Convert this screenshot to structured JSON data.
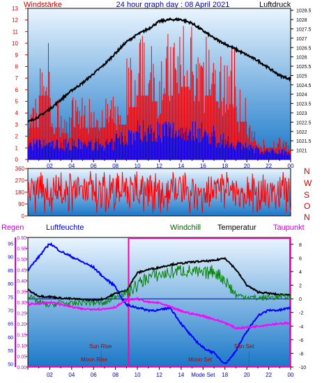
{
  "header": {
    "left_title": "Windstärke",
    "center_title": "24 hour graph day : 08 April 2021",
    "right_title": "Luftdruck"
  },
  "labels": {
    "regen": "Regen",
    "luftfeuchte": "Luftfeuchte",
    "windchill": "Windchill",
    "temperatur": "Temperatur",
    "taupunkt": "Taupunkt",
    "sun_rise": "Sun Rise",
    "moon_rise": "Moon Rise",
    "moon_set": "Moon Set",
    "sun_set": "Sun Set",
    "x_tick_center": "Mode Set",
    "compass": [
      "N",
      "W",
      "S",
      "O",
      "N"
    ]
  },
  "colors": {
    "wind_gust": "#ff0000",
    "wind_avg": "#0000ff",
    "pressure": "#000000",
    "wind_dir": "#ff0000",
    "humidity": "#0000ff",
    "windchill": "#008000",
    "temperature": "#000000",
    "dewpoint": "#ff00ff",
    "rain_box": "#ff00aa",
    "axis_left": "#cc0000",
    "axis_blue": "#0000cc",
    "bg_top": "#eaf5ff",
    "bg_bottom": "#1a78c8"
  },
  "chart_data": [
    {
      "type": "bar",
      "name": "wind",
      "title": "Windstärke",
      "ylabel": "Windstärke",
      "ylim": [
        0,
        13
      ],
      "yticks": [
        0,
        1,
        2,
        3,
        4,
        5,
        6,
        7,
        8,
        9,
        10,
        11,
        12,
        13
      ],
      "y2label": "Luftdruck",
      "y2lim": [
        1030.5,
        1028.6
      ],
      "y2ticks": [
        1028.5,
        1028.0,
        1027.5,
        1027.0,
        1026.5,
        1026.0,
        1025.5,
        1025.0,
        1024.5,
        1024.0,
        1023.5,
        1023.0,
        1022.5,
        1022.0,
        1021.5,
        1021.0
      ],
      "y2tick_labels": [
        "1028.5",
        "1028",
        "1027.5",
        "1027",
        "1026.5",
        "1026",
        "1025.5",
        "1025",
        "1024.5",
        "1024",
        "1023.5",
        "1023",
        "1022.5",
        "1022",
        "1021.5",
        "1021"
      ],
      "xticks": [
        "02",
        "04",
        "06",
        "08",
        "10",
        "12",
        "14",
        "16",
        "18",
        "20",
        "22",
        "00"
      ],
      "xlim": [
        0,
        24
      ],
      "gust_hourly_levels": [
        5.5,
        11,
        5.5,
        4.5,
        5.5,
        5.5,
        5.5,
        5.5,
        6,
        9,
        11,
        10,
        11,
        11,
        12.5,
        10,
        11,
        10,
        9.5,
        6.5,
        3,
        2,
        2,
        1.8
      ],
      "avg_hourly_levels": [
        1.8,
        1.8,
        1.8,
        1.8,
        1.8,
        1.8,
        1.8,
        1.8,
        2.5,
        3,
        3.5,
        3.5,
        3.5,
        3.5,
        3.5,
        3.5,
        3,
        2.5,
        2,
        1.8,
        1.3,
        1,
        1,
        1
      ],
      "pressure_hours": [
        0,
        1,
        2,
        3,
        4,
        5,
        6,
        7,
        8,
        9,
        10,
        11,
        12,
        13,
        14,
        15,
        16,
        17,
        18,
        19,
        20,
        21,
        22,
        23,
        24
      ],
      "pressure_values": [
        1022.5,
        1022.8,
        1023.2,
        1023.7,
        1024.2,
        1024.6,
        1025.1,
        1025.6,
        1026.2,
        1026.8,
        1027.2,
        1027.5,
        1027.9,
        1028.0,
        1028.0,
        1027.8,
        1027.4,
        1027.0,
        1026.7,
        1026.4,
        1026.1,
        1025.8,
        1025.4,
        1025.0,
        1024.8
      ]
    },
    {
      "type": "line",
      "name": "wind direction",
      "ylim": [
        0,
        360
      ],
      "yticks": [
        0,
        90,
        180,
        270,
        360
      ],
      "y2tick_labels": [
        "N",
        "W",
        "S",
        "O",
        "N"
      ],
      "xlim": [
        0,
        24
      ],
      "band": [
        90,
        300
      ]
    },
    {
      "type": "line",
      "name": "climate",
      "xticks": [
        "02",
        "04",
        "06",
        "08",
        "10",
        "12",
        "14",
        "16",
        "18",
        "20",
        "22",
        "00"
      ],
      "xlim": [
        0,
        24
      ],
      "y_rain_ticks": [
        0,
        0.05,
        0.1,
        0.15,
        0.2,
        0.25,
        0.3,
        0.35,
        0.4,
        0.45,
        0.5,
        0.55,
        0.6
      ],
      "y_rain_lim": [
        0,
        0.6
      ],
      "y_humidity_ticks": [
        50,
        55,
        60,
        65,
        70,
        75,
        80,
        85,
        90,
        95
      ],
      "y_humidity_lim": [
        48.8,
        97.2
      ],
      "y_temp_ticks": [
        -10,
        -8,
        -6,
        -4,
        -2,
        0,
        2,
        4,
        6,
        8
      ],
      "y_temp_lim": [
        -10,
        9
      ],
      "series": [
        {
          "name": "Luftfeuchte",
          "x": [
            0,
            1,
            2,
            3,
            4,
            5,
            6,
            7,
            8,
            8.5,
            9,
            10,
            11,
            12,
            13,
            14,
            15,
            16,
            17,
            18,
            18.5,
            19,
            20,
            21,
            22,
            23,
            24
          ],
          "y": [
            85,
            90,
            95,
            92,
            90,
            88,
            86,
            82,
            79,
            75,
            72,
            71,
            70,
            70,
            71,
            65,
            60,
            56,
            54,
            50,
            52,
            55,
            62,
            68,
            70,
            70,
            71
          ]
        },
        {
          "name": "Temperatur",
          "x": [
            0,
            1,
            2,
            3,
            4,
            5,
            6,
            7,
            8,
            9,
            10,
            11,
            12,
            13,
            14,
            15,
            16,
            17,
            18,
            19,
            20,
            21,
            22,
            23,
            24
          ],
          "y": [
            1.3,
            0.4,
            0.3,
            0.1,
            0.0,
            -0.1,
            -0.2,
            0.0,
            0.8,
            1.2,
            3.8,
            4.3,
            4.6,
            5.0,
            5.2,
            5.4,
            5.5,
            5.6,
            6.0,
            4.3,
            2.0,
            1.0,
            0.8,
            0.6,
            0.6
          ]
        },
        {
          "name": "Windchill",
          "x": [
            0,
            1,
            2,
            3,
            4,
            5,
            6,
            7,
            8,
            9,
            10,
            11,
            12,
            13,
            14,
            15,
            16,
            17,
            18,
            19,
            20,
            21,
            22,
            23,
            24
          ],
          "y": [
            0.4,
            -0.5,
            -1.0,
            -0.5,
            -0.8,
            -0.5,
            -0.6,
            -0.7,
            0.4,
            0.8,
            2.0,
            3.2,
            3.5,
            3.8,
            4.2,
            4.0,
            3.6,
            4.1,
            2.8,
            0.5,
            0.3,
            0.1,
            0.2,
            0.3,
            0.3
          ]
        },
        {
          "name": "Taupunkt",
          "x": [
            0,
            1,
            2,
            3,
            4,
            5,
            6,
            7,
            8,
            9,
            10,
            11,
            12,
            13,
            14,
            15,
            16,
            17,
            18,
            19,
            20,
            21,
            22,
            23,
            24
          ],
          "y": [
            -0.8,
            -0.7,
            -0.5,
            -0.8,
            -1.2,
            -1.5,
            -1.5,
            -1.5,
            -1.2,
            -0.2,
            0.0,
            -0.5,
            -0.6,
            -1.2,
            -1.8,
            -2.2,
            -2.5,
            -3.0,
            -3.5,
            -4.3,
            -4.2,
            -4.0,
            -3.8,
            -3.6,
            -3.6
          ]
        },
        {
          "name": "Regen",
          "x": [
            0,
            24
          ],
          "y": [
            0,
            0
          ]
        }
      ],
      "sun_rise_hour": 6.7,
      "moon_rise_hour": 6.7,
      "moon_set_hour": 15.3,
      "sun_set_hour": 20.2,
      "rain_box_hours": [
        9.2,
        24
      ]
    }
  ]
}
